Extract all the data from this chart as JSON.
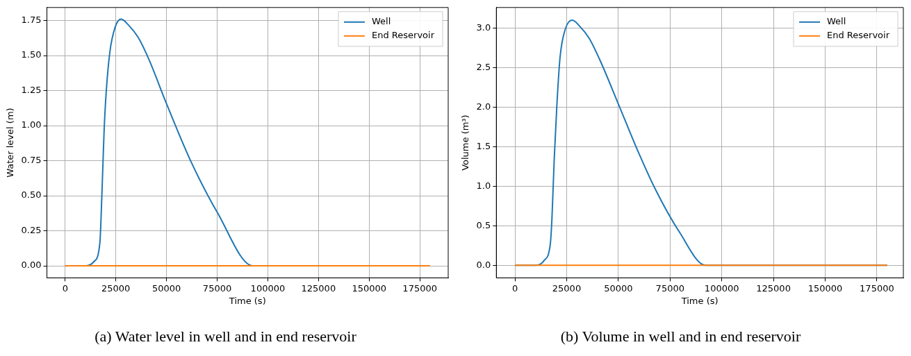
{
  "chart_data": [
    {
      "type": "line",
      "title": "(a) Water level in well and in end reservoir",
      "xlabel": "Time (s)",
      "ylabel": "Water level (m)",
      "series": [
        {
          "name": "Well",
          "color": "#1f77b4",
          "x": [
            0,
            10400,
            14200,
            17100,
            18100,
            19200,
            20200,
            22000,
            24600,
            27600,
            31100,
            36000,
            41400,
            49900,
            62200,
            75100,
            92600,
            180000
          ],
          "values": [
            0,
            0,
            0.03,
            0.16,
            0.5,
            0.96,
            1.23,
            1.52,
            1.7,
            1.76,
            1.72,
            1.63,
            1.47,
            1.16,
            0.74,
            0.38,
            0,
            0
          ]
        },
        {
          "name": "End Reservoir",
          "color": "#ff7f0e",
          "x": [
            0,
            180000
          ],
          "values": [
            0,
            0
          ]
        }
      ],
      "xlim": [
        -9000,
        189000
      ],
      "xticks": [
        0,
        25000,
        50000,
        75000,
        100000,
        125000,
        150000,
        175000
      ],
      "ylim": [
        -0.086,
        1.843
      ],
      "yticks": [
        {
          "value": 0,
          "label": "0.00"
        },
        0.25,
        {
          "value": 0.5,
          "label": "0.50"
        },
        0.75,
        {
          "value": 1,
          "label": "1.00"
        },
        1.25,
        {
          "value": 1.5,
          "label": "1.50"
        },
        1.75
      ],
      "grid": true,
      "legend": "top right"
    },
    {
      "type": "line",
      "title": "(b) Volume in well and in end reservoir",
      "xlabel": "Time (s)",
      "ylabel": "Volume (m³)",
      "series": [
        {
          "name": "Well",
          "color": "#1f77b4",
          "x": [
            0,
            10300,
            14100,
            17100,
            17900,
            19000,
            20300,
            21800,
            24400,
            27700,
            31400,
            35900,
            41000,
            50000,
            59000,
            67900,
            79500,
            92100,
            180000
          ],
          "values": [
            0,
            0,
            0.06,
            0.27,
            0.6,
            1.35,
            2.04,
            2.63,
            2.99,
            3.1,
            3.02,
            2.87,
            2.6,
            2.04,
            1.47,
            0.96,
            0.42,
            0,
            0
          ]
        },
        {
          "name": "End Reservoir",
          "color": "#ff7f0e",
          "x": [
            0,
            180000
          ],
          "values": [
            0,
            0
          ]
        }
      ],
      "xlim": [
        -9000,
        187800
      ],
      "xticks": [
        0,
        25000,
        50000,
        75000,
        100000,
        125000,
        150000,
        175000
      ],
      "ylim": [
        -0.16,
        3.26
      ],
      "yticks": [
        {
          "value": 0,
          "label": "0.0"
        },
        0.5,
        {
          "value": 1,
          "label": "1.0"
        },
        1.5,
        {
          "value": 2,
          "label": "2.0"
        },
        2.5,
        {
          "value": 3,
          "label": "3.0"
        }
      ],
      "grid": true,
      "legend": "top right"
    }
  ]
}
